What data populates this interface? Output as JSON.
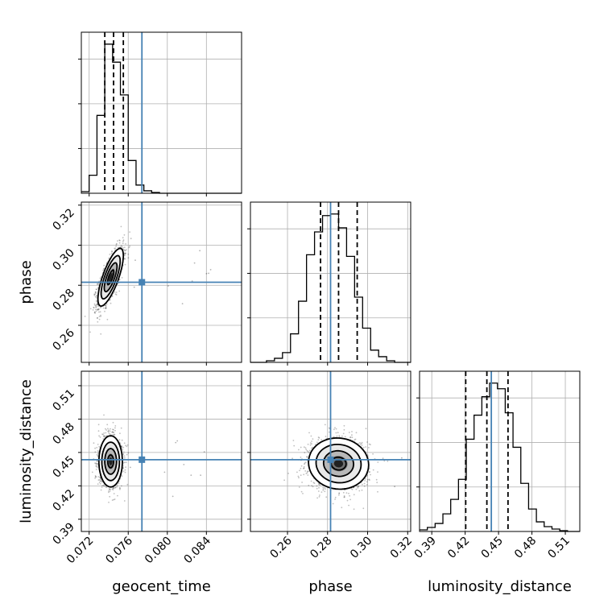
{
  "chart_data": {
    "type": "corner",
    "parameters": [
      {
        "name": "geocent_time",
        "label": "geocent_time",
        "range": [
          0.0712,
          0.0876
        ],
        "ticks": [
          0.072,
          0.076,
          0.08,
          0.084
        ],
        "tick_labels": [
          "0.072",
          "0.076",
          "0.080",
          "0.084"
        ],
        "truth": 0.0774,
        "quantiles": [
          0.0736,
          0.0745,
          0.0755
        ],
        "histogram": {
          "bin_edges": [
            0.0712,
            0.072,
            0.0728,
            0.0736,
            0.0744,
            0.0752,
            0.076,
            0.0768,
            0.0776,
            0.0784,
            0.0792,
            0.08,
            0.0808,
            0.0816,
            0.0824,
            0.0832,
            0.084,
            0.0848,
            0.0856,
            0.0864,
            0.0872,
            0.0876
          ],
          "counts": [
            2,
            22,
            95,
            182,
            160,
            120,
            40,
            10,
            3,
            1,
            0,
            0,
            0,
            0,
            0,
            0,
            0,
            0,
            0,
            0,
            0
          ]
        }
      },
      {
        "name": "phase",
        "label": "phase",
        "range": [
          0.2415,
          0.3215
        ],
        "ticks": [
          0.26,
          0.28,
          0.3,
          0.32
        ],
        "tick_labels": [
          "0.26",
          "0.28",
          "0.30",
          "0.32"
        ],
        "truth": 0.2815,
        "quantiles": [
          0.2765,
          0.2855,
          0.2948
        ],
        "histogram": {
          "bin_edges": [
            0.2415,
            0.2455,
            0.2495,
            0.2535,
            0.2575,
            0.2615,
            0.2655,
            0.2695,
            0.2735,
            0.2775,
            0.2815,
            0.2855,
            0.2895,
            0.2935,
            0.2975,
            0.3015,
            0.3055,
            0.3095,
            0.3135,
            0.3175,
            0.3215
          ],
          "counts": [
            0,
            0,
            2,
            5,
            12,
            35,
            75,
            132,
            160,
            180,
            182,
            165,
            130,
            80,
            42,
            15,
            7,
            2,
            0,
            0
          ]
        }
      },
      {
        "name": "luminosity_distance",
        "label": "luminosity_distance",
        "range": [
          0.379,
          0.523
        ],
        "ticks": [
          0.39,
          0.42,
          0.45,
          0.48,
          0.51
        ],
        "tick_labels": [
          "0.39",
          "0.42",
          "0.45",
          "0.48",
          "0.51"
        ],
        "truth": 0.4435,
        "quantiles": [
          0.4205,
          0.4395,
          0.4585
        ],
        "histogram": {
          "bin_edges": [
            0.379,
            0.386,
            0.393,
            0.4,
            0.407,
            0.414,
            0.421,
            0.428,
            0.435,
            0.442,
            0.449,
            0.456,
            0.463,
            0.47,
            0.477,
            0.484,
            0.491,
            0.498,
            0.505,
            0.512,
            0.519,
            0.523
          ],
          "counts": [
            2,
            5,
            10,
            22,
            40,
            65,
            115,
            145,
            168,
            185,
            178,
            148,
            105,
            60,
            28,
            12,
            6,
            3,
            1,
            0,
            0
          ]
        }
      }
    ],
    "density_2d": [
      {
        "x": "geocent_time",
        "y": "phase",
        "mean": [
          0.0742,
          0.284
        ],
        "std": [
          0.00065,
          0.0072
        ],
        "correlation": 0.75,
        "truth": [
          0.0774,
          0.2815
        ]
      },
      {
        "x": "geocent_time",
        "y": "luminosity_distance",
        "mean": [
          0.0742,
          0.442
        ],
        "std": [
          0.0006,
          0.0115
        ],
        "correlation": 0.0,
        "truth": [
          0.0774,
          0.4435
        ]
      },
      {
        "x": "phase",
        "y": "luminosity_distance",
        "mean": [
          0.2855,
          0.44
        ],
        "std": [
          0.0075,
          0.0115
        ],
        "correlation": -0.05,
        "truth": [
          0.2815,
          0.4435
        ]
      }
    ],
    "contour_levels": [
      "0.5σ",
      "1σ",
      "1.5σ",
      "2σ"
    ],
    "colors": {
      "truth": "#4682b4",
      "contour": "#000000",
      "histogram": "#000000",
      "grid": "#b0b0b0",
      "points": "#000000"
    },
    "grid": true
  }
}
